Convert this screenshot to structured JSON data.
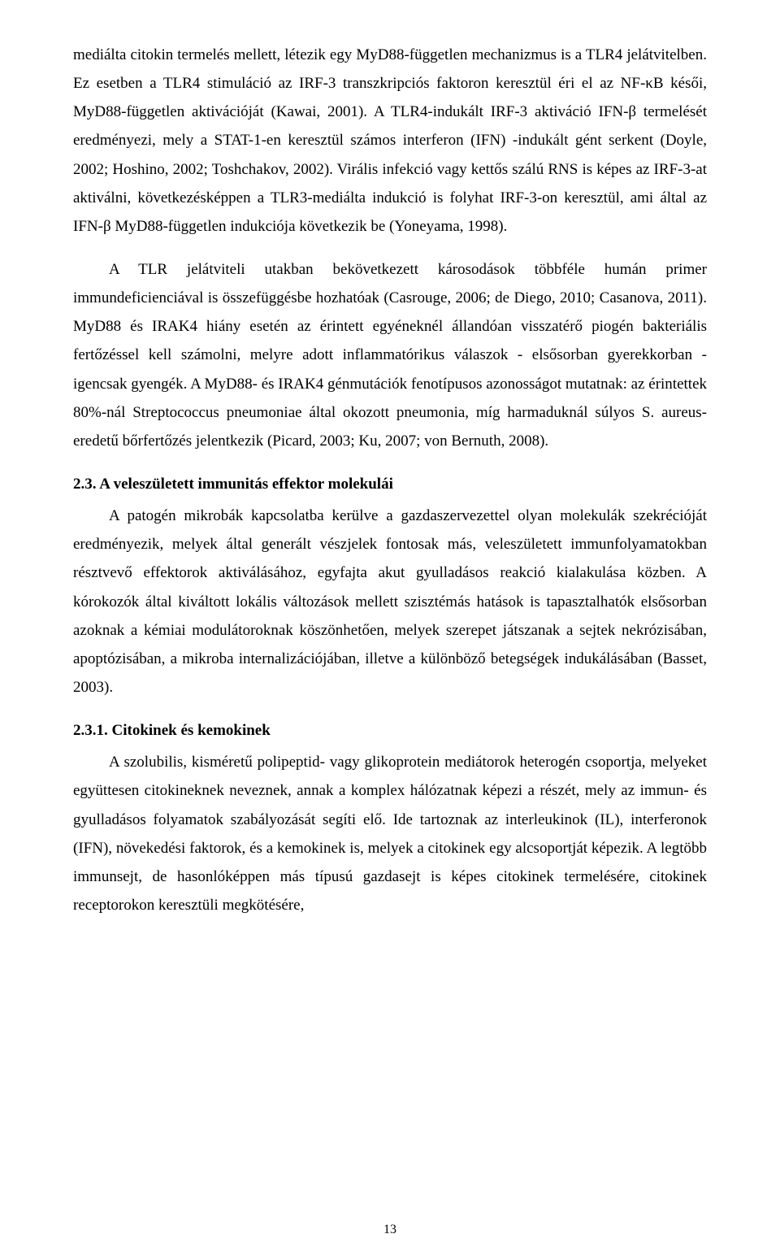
{
  "paragraphs": {
    "p1": "mediálta citokin termelés mellett, létezik egy MyD88-független mechanizmus is a TLR4 jelátvitelben. Ez esetben a TLR4 stimuláció az IRF-3 transzkripciós faktoron keresztül éri el az NF-κB késői, MyD88-független aktivációját (Kawai, 2001). A TLR4-indukált IRF-3 aktiváció IFN-β termelését eredményezi, mely a STAT-1-en keresztül számos interferon (IFN) -indukált gént serkent (Doyle, 2002; Hoshino, 2002; Toshchakov, 2002). Virális infekció vagy kettős szálú RNS is képes az IRF-3-at aktiválni, következésképpen a TLR3-mediálta indukció is folyhat IRF-3-on keresztül, ami által az IFN-β MyD88-független indukciója következik be (Yoneyama, 1998).",
    "p2": "A TLR jelátviteli utakban bekövetkezett károsodások többféle humán primer immundeficienciával is összefüggésbe hozhatóak (Casrouge, 2006; de Diego, 2010; Casanova, 2011). MyD88 és IRAK4 hiány esetén az érintett egyéneknél állandóan visszatérő piogén bakteriális fertőzéssel kell számolni, melyre adott inflammatórikus válaszok - elsősorban gyerekkorban - igencsak gyengék. A MyD88- és IRAK4 génmutációk fenotípusos azonosságot mutatnak: az érintettek 80%-nál Streptococcus pneumoniae által okozott pneumonia, míg harmaduknál súlyos S. aureus-eredetű bőrfertőzés jelentkezik (Picard, 2003; Ku, 2007; von Bernuth, 2008).",
    "p3": "A patogén mikrobák kapcsolatba kerülve a gazdaszervezettel olyan molekulák szekrécióját eredményezik, melyek által generált vészjelek fontosak más, veleszületett immunfolyamatokban résztvevő effektorok aktiválásához, egyfajta akut gyulladásos reakció kialakulása közben. A kórokozók által kiváltott lokális változások mellett szisztémás hatások is tapasztalhatók elsősorban azoknak a kémiai modulátoroknak köszönhetően, melyek szerepet játszanak a sejtek nekrózisában, apoptózisában, a mikroba internalizációjában, illetve a különböző betegségek indukálásában (Basset, 2003).",
    "p4": "A szolubilis, kisméretű polipeptid- vagy glikoprotein mediátorok heterogén csoportja, melyeket együttesen citokineknek neveznek, annak a komplex hálózatnak képezi a részét, mely az immun- és gyulladásos folyamatok szabályozását segíti elő. Ide tartoznak az interleukinok (IL), interferonok (IFN), növekedési faktorok, és a kemokinek is, melyek a citokinek egy alcsoportját képezik. A legtöbb immunsejt, de hasonlóképpen más típusú gazdasejt is képes citokinek termelésére, citokinek receptorokon keresztüli megkötésére,"
  },
  "headings": {
    "h23": "2.3. A veleszületett immunitás effektor molekulái",
    "h231": "2.3.1. Citokinek és kemokinek"
  },
  "page_number": "13"
}
